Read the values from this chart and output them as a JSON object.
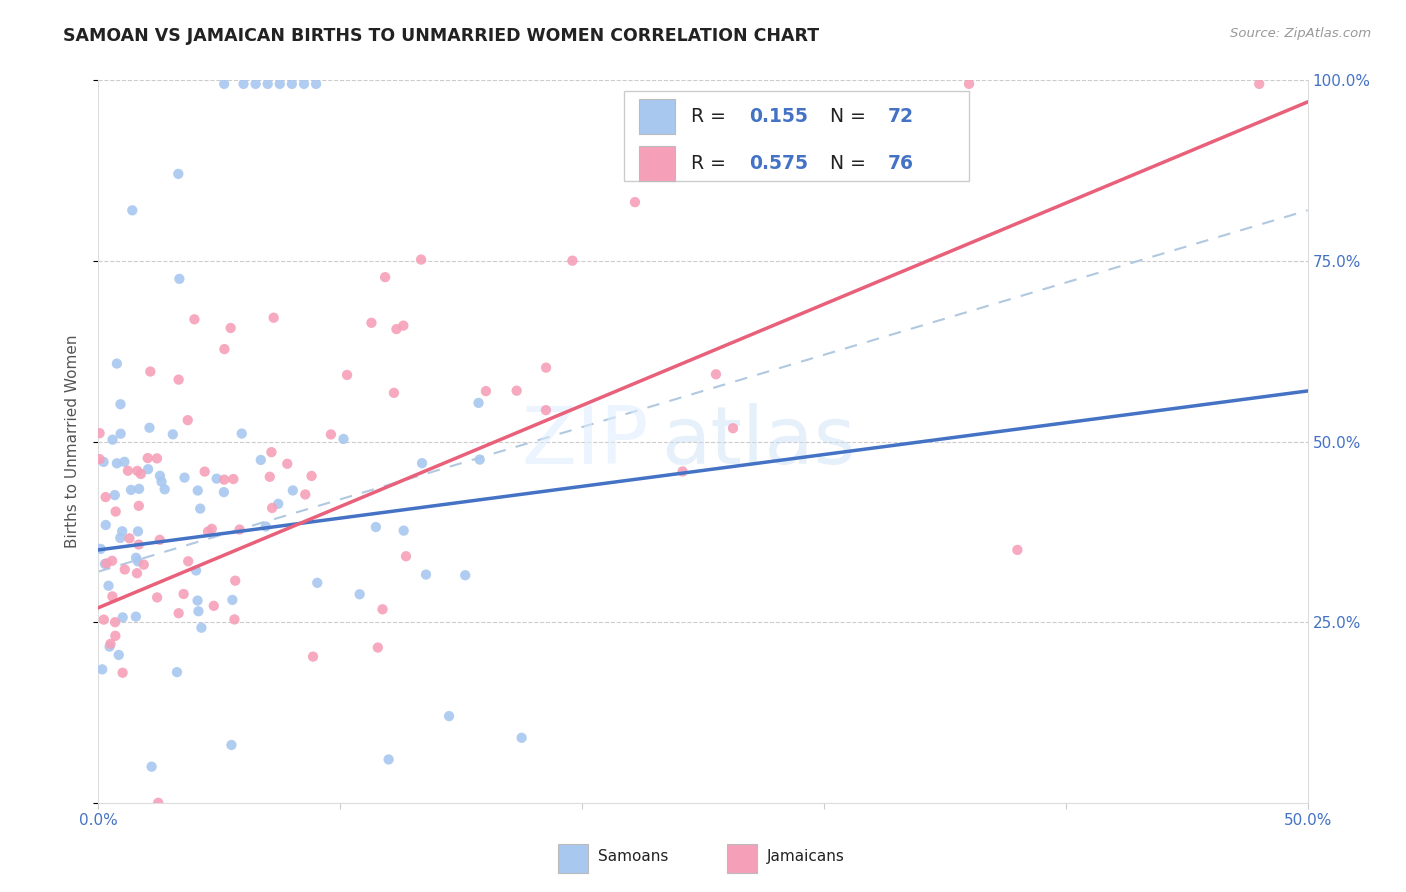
{
  "title": "SAMOAN VS JAMAICAN BIRTHS TO UNMARRIED WOMEN CORRELATION CHART",
  "source": "Source: ZipAtlas.com",
  "ylabel": "Births to Unmarried Women",
  "xlim": [
    0.0,
    0.5
  ],
  "ylim": [
    0.0,
    1.0
  ],
  "samoan_R": 0.155,
  "samoan_N": 72,
  "jamaican_R": 0.575,
  "jamaican_N": 76,
  "samoan_color": "#a8c8f0",
  "jamaican_color": "#f5a0b8",
  "samoan_line_color": "#4472c4",
  "jamaican_line_color": "#e8607a",
  "dash_line_color": "#b0c8e0",
  "watermark": "ZIPatlas",
  "background_color": "#ffffff",
  "legend_text_color": "#222222",
  "legend_value_color": "#4472c4",
  "right_axis_color": "#4472c4",
  "grid_color": "#cccccc",
  "title_color": "#222222",
  "source_color": "#999999",
  "ylabel_color": "#555555",
  "xlabel_tick_color": "#4472c4",
  "samoan_seed": 42,
  "jamaican_seed": 99
}
